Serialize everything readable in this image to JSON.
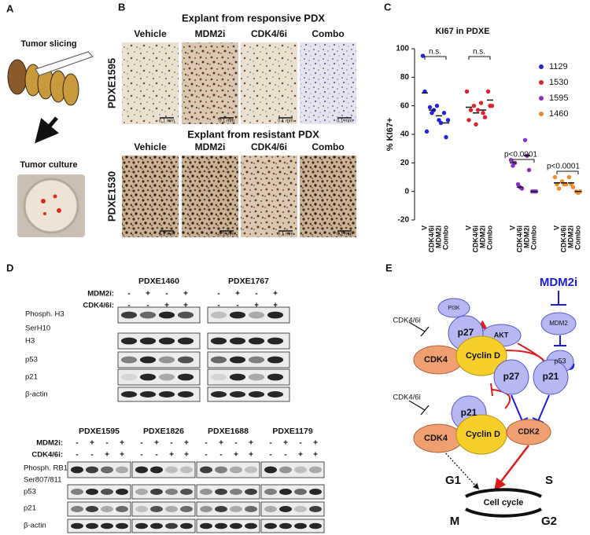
{
  "panel_a": {
    "label": "A",
    "steps": [
      "Tumor slicing",
      "Tumor culture"
    ]
  },
  "panel_b": {
    "label": "B",
    "rows": [
      {
        "title": "Explant from responsive PDX",
        "sample": "PDXE1595",
        "columns": [
          "Vehicle",
          "MDM2i",
          "CDK4/6i",
          "Combo"
        ],
        "scale_bars": [
          "0.1 mm",
          "0.1 mm",
          "0.1 mm",
          "0.1 mm"
        ]
      },
      {
        "title": "Explant from resistant PDX",
        "sample": "PDXE1530",
        "columns": [
          "Vehicle",
          "MDM2i",
          "CDK4/6i",
          "Combo"
        ],
        "scale_bars": [
          "0.1 mm",
          "0.1 mm",
          "0.1 mm",
          "0.1 mm"
        ]
      }
    ]
  },
  "chart_data": {
    "type": "scatter",
    "label": "C",
    "title": "KI67 in PDXE",
    "y_label": "% KI67+",
    "ylim": [
      -20,
      100
    ],
    "yticks": [
      -20,
      0,
      20,
      40,
      60,
      80,
      100
    ],
    "legend": "right",
    "series": [
      {
        "name": "1129",
        "color": "#2323d8",
        "categories": [
          "V",
          "CDK4/6i",
          "MDM2i",
          "Combo"
        ],
        "values": [
          [
            95,
            70,
            42
          ],
          [
            59,
            55,
            57
          ],
          [
            60,
            50,
            48
          ],
          [
            55,
            38,
            50
          ]
        ],
        "means": [
          69,
          57,
          53,
          48
        ]
      },
      {
        "name": "1530",
        "color": "#e0202a",
        "categories": [
          "V",
          "CDK4/6i",
          "MDM2i",
          "Combo"
        ],
        "values": [
          [
            70,
            50,
            57
          ],
          [
            60,
            47,
            57
          ],
          [
            62,
            55,
            52
          ],
          [
            70,
            60,
            60
          ]
        ],
        "means": [
          59,
          55,
          57,
          64
        ]
      },
      {
        "name": "1595",
        "color": "#8a2fc4",
        "categories": [
          "V",
          "CDK4/6i",
          "MDM2i",
          "Combo"
        ],
        "values": [
          [
            22,
            18,
            20
          ],
          [
            5,
            3,
            2
          ],
          [
            36,
            25,
            15
          ],
          [
            0,
            0,
            0
          ]
        ],
        "means": [
          20,
          3,
          25,
          0
        ]
      },
      {
        "name": "1460",
        "color": "#f08a2a",
        "categories": [
          "V",
          "CDK4/6i",
          "MDM2i",
          "Combo"
        ],
        "values": [
          [
            10,
            5,
            2
          ],
          [
            7,
            5,
            5
          ],
          [
            10,
            5,
            3
          ],
          [
            0,
            -1,
            0
          ]
        ],
        "means": [
          6,
          6,
          6,
          0
        ]
      }
    ],
    "annotations": [
      "n.s.",
      "n.s.",
      "p<0.0001",
      "p<0.0001"
    ]
  },
  "panel_d": {
    "label": "D",
    "blots": [
      {
        "treatments": [
          "MDM2i:",
          "CDK4/6i:"
        ],
        "rows": [
          "Phosph. H3",
          "SerH10",
          "H3",
          "p53",
          "p21",
          "β-actin"
        ],
        "samples": [
          {
            "name": "PDXE1460",
            "signs": [
              [
                "-",
                "+",
                "-",
                "+"
              ],
              [
                "-",
                "-",
                "+",
                "+"
              ]
            ]
          },
          {
            "name": "PDXE1767",
            "signs": [
              [
                "-",
                "+",
                "-",
                "+"
              ],
              [
                "-",
                "-",
                "+",
                "+"
              ]
            ]
          }
        ]
      },
      {
        "treatments": [
          "MDM2i:",
          "CDK4/6i:"
        ],
        "rows": [
          "Phosph. RB1",
          "Ser807/811",
          "p53",
          "p21",
          "β-actin"
        ],
        "samples": [
          {
            "name": "PDXE1595",
            "signs": [
              [
                "-",
                "+",
                "-",
                "+"
              ],
              [
                "-",
                "-",
                "+",
                "+"
              ]
            ]
          },
          {
            "name": "PDXE1826",
            "signs": [
              [
                "-",
                "+",
                "-",
                "+"
              ],
              [
                "-",
                "-",
                "+",
                "+"
              ]
            ]
          },
          {
            "name": "PDXE1688",
            "signs": [
              [
                "-",
                "+",
                "-",
                "+"
              ],
              [
                "-",
                "-",
                "+",
                "+"
              ]
            ]
          },
          {
            "name": "PDXE1179",
            "signs": [
              [
                "-",
                "+",
                "-",
                "+"
              ],
              [
                "-",
                "-",
                "+",
                "+"
              ]
            ]
          }
        ]
      }
    ]
  },
  "panel_e": {
    "label": "E",
    "nodes": [
      "MDM2i",
      "MDM2",
      "p53",
      "PI3K",
      "AKT",
      "CDK4/6i",
      "p27",
      "CDK4",
      "Cyclin D",
      "p27",
      "p21",
      "CDK4/6i",
      "p21",
      "CDK4",
      "Cyclin D",
      "CDK2",
      "G1",
      "S",
      "M",
      "G2",
      "Cell cycle"
    ]
  }
}
